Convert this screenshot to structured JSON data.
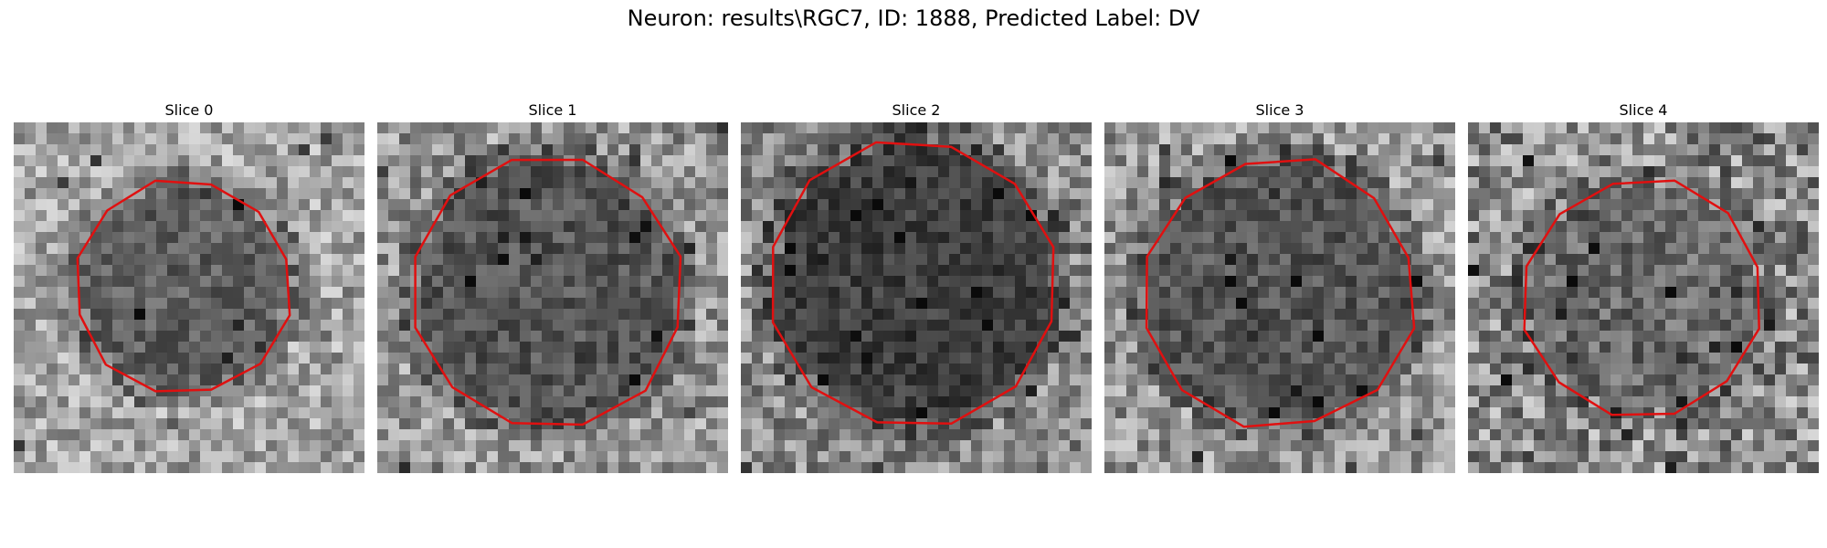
{
  "figure": {
    "title": "Neuron: results\\RGC7, ID: 1888, Predicted Label: DV"
  },
  "panels": [
    {
      "title": "Slice 0",
      "tone": "light"
    },
    {
      "title": "Slice 1",
      "tone": "mid"
    },
    {
      "title": "Slice 2",
      "tone": "dark"
    },
    {
      "title": "Slice 3",
      "tone": "mid"
    },
    {
      "title": "Slice 4",
      "tone": "mixed"
    }
  ],
  "colors": {
    "contour": "#e01010",
    "background": "#ffffff"
  }
}
